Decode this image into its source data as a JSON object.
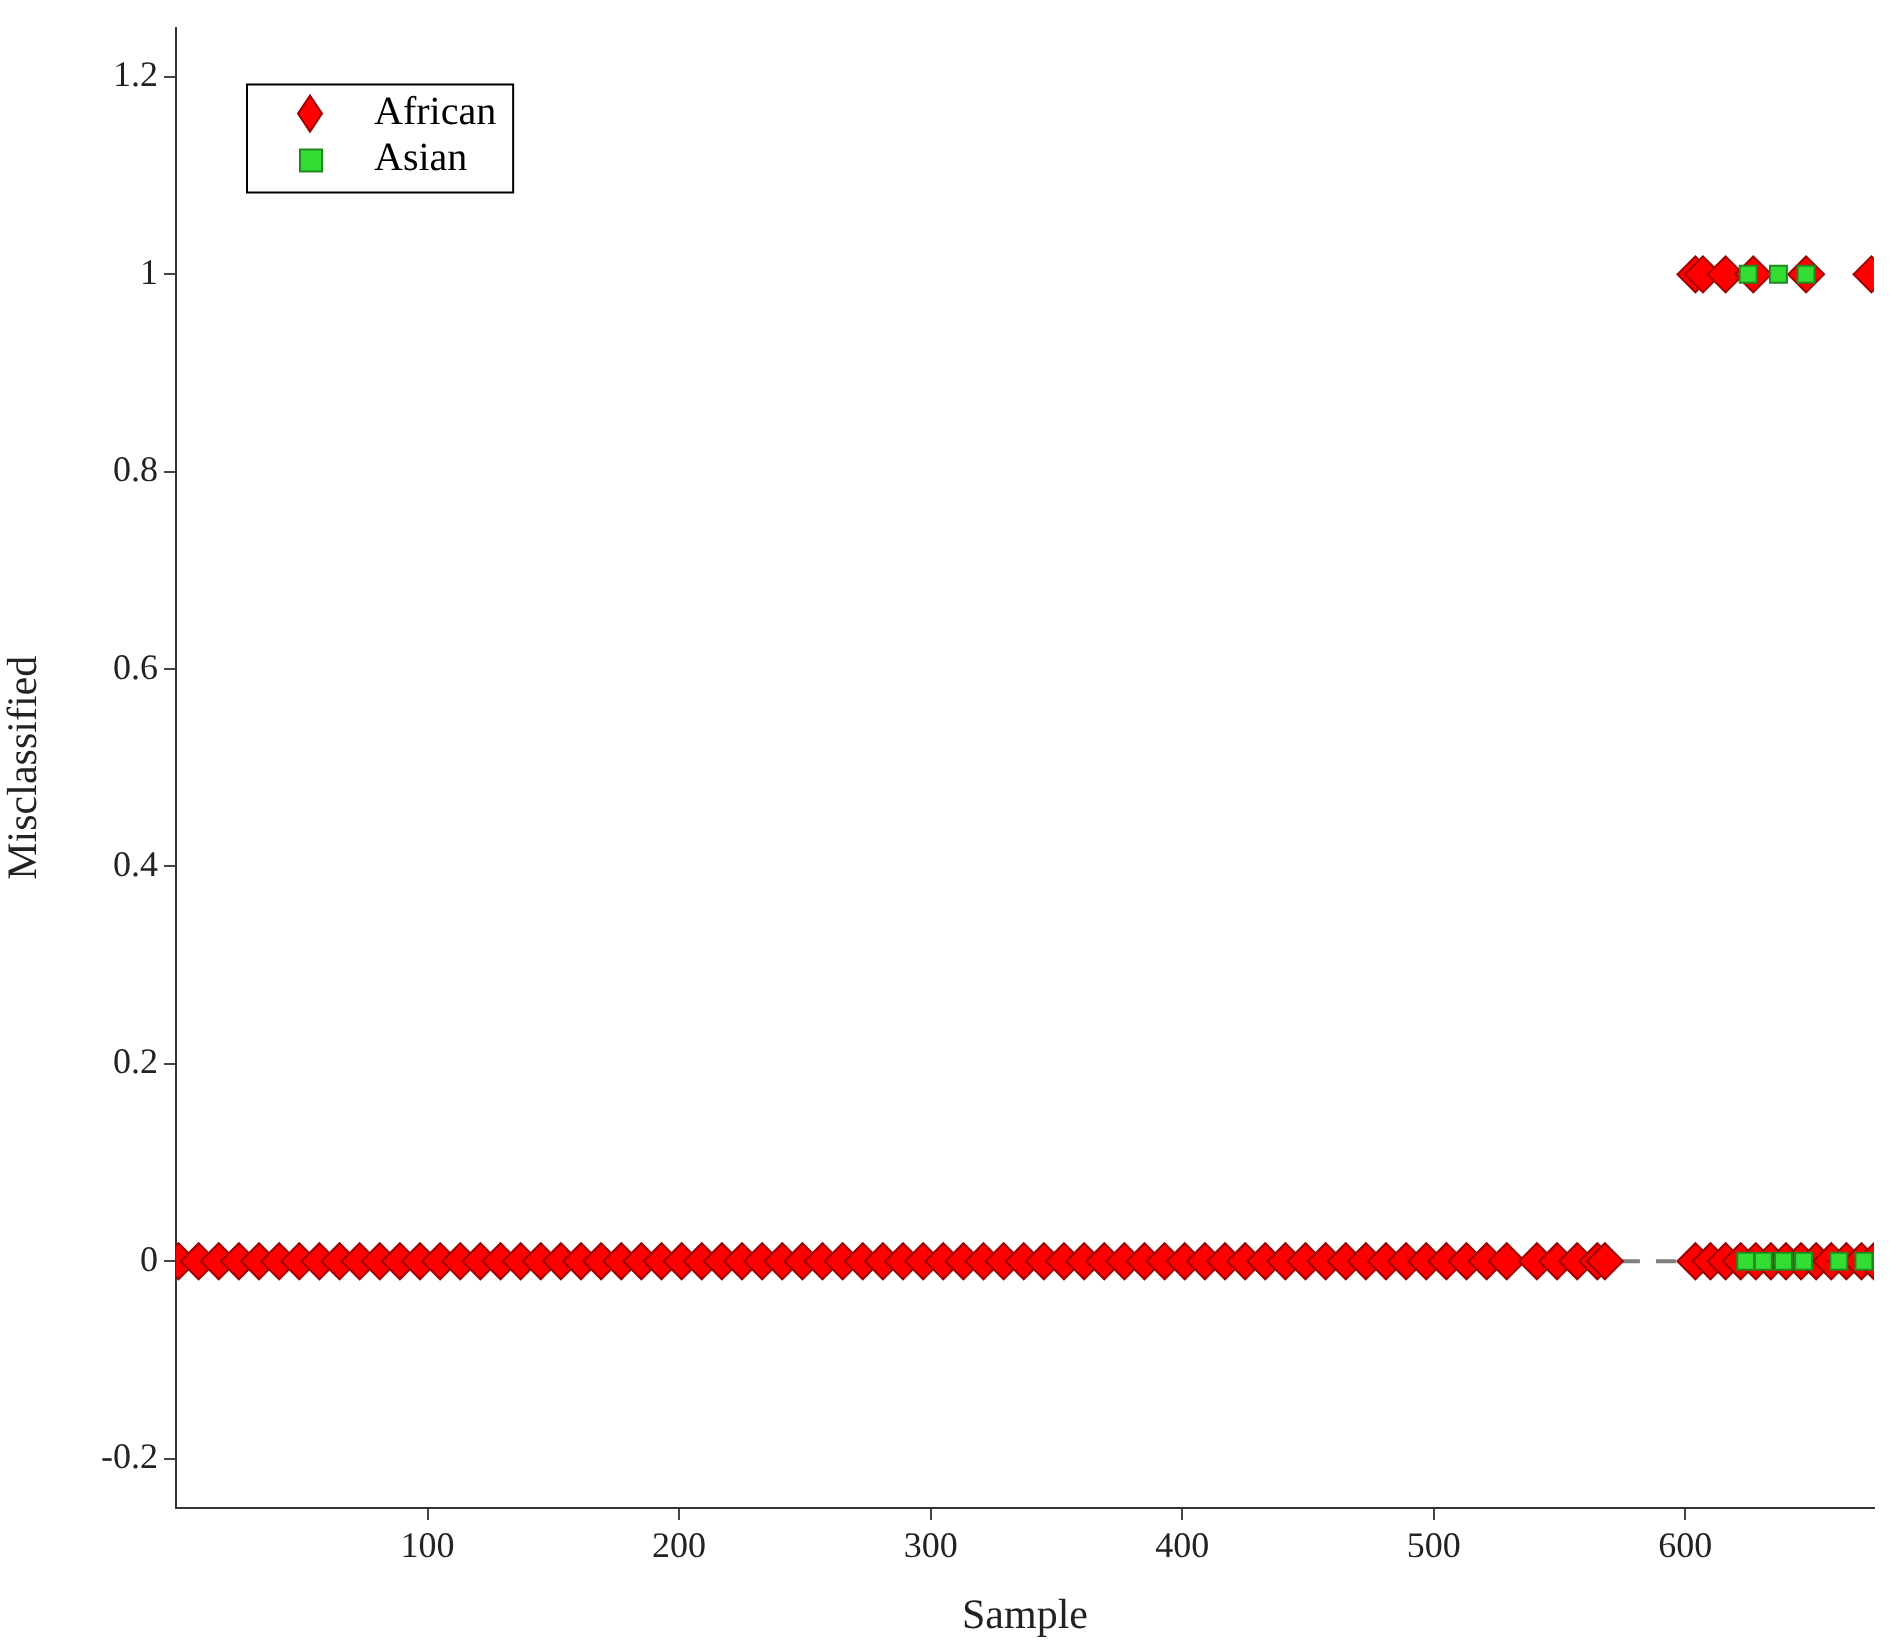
{
  "chart_data": {
    "type": "scatter",
    "xlabel": "Sample",
    "ylabel": "Misclassified",
    "xlim": [
      0,
      675
    ],
    "xticks": [
      100,
      200,
      300,
      400,
      500,
      600
    ],
    "ylim": [
      -0.25,
      1.25
    ],
    "yticks": [
      -0.2,
      0,
      0.2,
      0.4,
      0.6,
      0.8,
      1,
      1.2
    ],
    "legend": "top left",
    "series": [
      {
        "type": "line",
        "color": "#808080",
        "line_style": "dashed",
        "marker": "none",
        "x": [
          574,
          598
        ],
        "values": [
          0,
          0
        ]
      },
      {
        "name": "African",
        "color": "#ff0000",
        "marker": "diamond",
        "x": [
          1,
          9,
          17,
          25,
          33,
          41,
          49,
          57,
          65,
          73,
          81,
          89,
          97,
          105,
          113,
          121,
          129,
          137,
          145,
          153,
          161,
          169,
          177,
          185,
          193,
          201,
          209,
          217,
          225,
          233,
          241,
          249,
          257,
          265,
          273,
          281,
          289,
          297,
          305,
          313,
          321,
          329,
          337,
          345,
          353,
          361,
          369,
          377,
          385,
          393,
          401,
          409,
          417,
          425,
          433,
          441,
          449,
          457,
          465,
          473,
          481,
          489,
          497,
          505,
          513,
          521,
          529,
          541,
          549,
          557,
          565,
          568,
          604,
          610,
          616,
          622,
          628,
          634,
          640,
          646,
          652,
          658,
          664,
          670,
          675,
          604,
          607,
          616,
          627,
          648,
          674
        ],
        "values": [
          0,
          0,
          0,
          0,
          0,
          0,
          0,
          0,
          0,
          0,
          0,
          0,
          0,
          0,
          0,
          0,
          0,
          0,
          0,
          0,
          0,
          0,
          0,
          0,
          0,
          0,
          0,
          0,
          0,
          0,
          0,
          0,
          0,
          0,
          0,
          0,
          0,
          0,
          0,
          0,
          0,
          0,
          0,
          0,
          0,
          0,
          0,
          0,
          0,
          0,
          0,
          0,
          0,
          0,
          0,
          0,
          0,
          0,
          0,
          0,
          0,
          0,
          0,
          0,
          0,
          0,
          0,
          0,
          0,
          0,
          0,
          0,
          0,
          0,
          0,
          0,
          0,
          0,
          0,
          0,
          0,
          0,
          0,
          0,
          0,
          1,
          1,
          1,
          1,
          1,
          1
        ]
      },
      {
        "name": "Asian",
        "color": "#33dd33",
        "marker": "square",
        "x": [
          624,
          631,
          639,
          647,
          661,
          671,
          625,
          637,
          648
        ],
        "values": [
          0,
          0,
          0,
          0,
          0,
          0,
          1,
          1,
          1
        ]
      }
    ]
  }
}
